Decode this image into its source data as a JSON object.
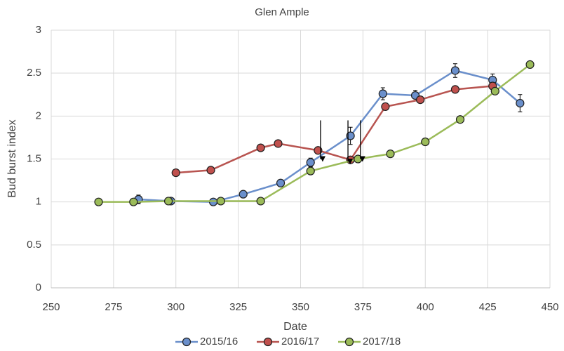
{
  "chart_data": {
    "type": "line",
    "title": "Glen Ample",
    "x_label": "Date",
    "y_label": "Bud burst index",
    "xlim": [
      250,
      450
    ],
    "xticks": [
      250,
      275,
      300,
      325,
      350,
      375,
      400,
      425,
      450
    ],
    "ylim": [
      0,
      3
    ],
    "yticks": [
      0,
      0.5,
      1,
      1.5,
      2,
      2.5,
      3
    ],
    "grid": true,
    "legend": "bottom",
    "series": [
      {
        "name": "2015/16",
        "color": "#6a8fcb",
        "marker_color": "#6a8fcb",
        "x": [
          285,
          298,
          315,
          327,
          342,
          354,
          370,
          383,
          396,
          412,
          427,
          438
        ],
        "values": [
          1.03,
          1.01,
          1.0,
          1.09,
          1.22,
          1.46,
          1.77,
          2.26,
          2.24,
          2.53,
          2.42,
          2.15
        ],
        "errors": [
          0.05,
          0.02,
          0.02,
          0.03,
          0.04,
          0.05,
          0.1,
          0.07,
          0.06,
          0.08,
          0.07,
          0.1
        ]
      },
      {
        "name": "2016/17",
        "color": "#b85450",
        "marker_color": "#c0504d",
        "x": [
          300,
          314,
          334,
          341,
          357,
          370,
          384,
          398,
          412,
          427
        ],
        "values": [
          1.34,
          1.37,
          1.63,
          1.68,
          1.6,
          1.49,
          2.11,
          2.19,
          2.31,
          2.35
        ]
      },
      {
        "name": "2017/18",
        "color": "#9bbb59",
        "marker_color": "#9bbb59",
        "x": [
          269,
          283,
          297,
          318,
          334,
          354,
          373,
          386,
          400,
          414,
          428,
          442
        ],
        "values": [
          1.0,
          1.0,
          1.01,
          1.01,
          1.01,
          1.36,
          1.5,
          1.56,
          1.7,
          1.96,
          2.29,
          2.6
        ]
      }
    ],
    "arrows": [
      {
        "x": 358,
        "y_from": 1.95,
        "y_to": 1.5
      },
      {
        "x": 369,
        "y_from": 1.95,
        "y_to": 1.47
      },
      {
        "x": 374,
        "y_from": 1.95,
        "y_to": 1.5
      }
    ]
  }
}
